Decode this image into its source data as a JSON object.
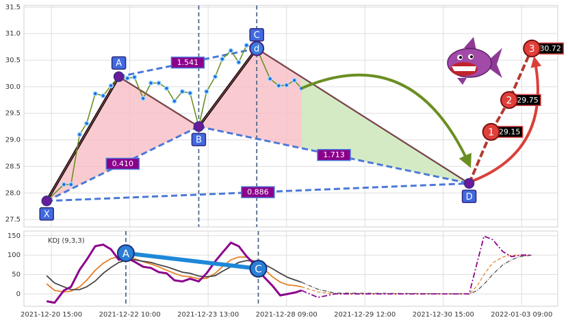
{
  "chart_data": [
    {
      "type": "line",
      "xlim": [
        -3.5,
        64.6
      ],
      "ylim": [
        27.36,
        31.53
      ],
      "yticks": [
        27.5,
        {
          "value": 28,
          "label": "28.0"
        },
        28.5,
        {
          "value": 29,
          "label": "29.0"
        },
        29.5,
        {
          "value": 30,
          "label": "30.0"
        },
        30.5,
        {
          "value": 31,
          "label": "31.0"
        },
        31.5
      ],
      "xticks": [
        {
          "value": 0,
          "label": "2021-12-20 15:00"
        },
        {
          "value": 10,
          "label": "2021-12-22 10:00"
        },
        {
          "value": 20,
          "label": "2021-12-23 13:00"
        },
        {
          "value": 30,
          "label": "2021-12-28 09:00"
        },
        {
          "value": 40,
          "label": "2021-12-29 12:00"
        },
        {
          "value": 50,
          "label": "2021-12-30 15:00"
        },
        {
          "value": 60,
          "label": "2022-01-03 09:00"
        }
      ],
      "grid": true,
      "x": [
        -0.6,
        1.6,
        2.5,
        3.6,
        4.5,
        5.6,
        6.6,
        7.6,
        8.6,
        9.7,
        10.6,
        11.7,
        12.7,
        13.7,
        14.7,
        15.7,
        16.7,
        17.7,
        18.8,
        19.8,
        20.9,
        21.8,
        22.9,
        23.9,
        24.9,
        26.2,
        27.9,
        29.0,
        30.0,
        31.0,
        31.9
      ],
      "series": [
        {
          "color": "#6b8e23",
          "marker_color": "#1e6fe0",
          "values": [
            27.85,
            28.16,
            28.16,
            29.1,
            29.31,
            29.87,
            29.83,
            30.02,
            30.19,
            30.16,
            30.18,
            29.78,
            30.07,
            30.07,
            29.97,
            29.73,
            29.91,
            29.88,
            29.25,
            29.91,
            30.19,
            30.52,
            30.68,
            30.46,
            30.78,
            30.72,
            30.15,
            30.02,
            30.03,
            30.12,
            29.97
          ]
        }
      ],
      "points": {
        "labels": [
          "X",
          "A",
          "B",
          "C",
          "D"
        ],
        "x": [
          -0.6,
          8.6,
          18.8,
          26.2,
          53.3
        ],
        "values": [
          27.85,
          30.19,
          29.25,
          30.72,
          28.18
        ]
      },
      "inner_label": "d",
      "leg_labels": [
        "0.410",
        "1.541",
        "0.886",
        "1.713"
      ],
      "targets": {
        "labels": [
          "1",
          "2",
          "3"
        ],
        "x": [
          56.1,
          58.4,
          61.3
        ],
        "values": [
          29.15,
          29.75,
          30.72
        ]
      }
    },
    {
      "type": "line",
      "title": "KDJ (9,3,3)",
      "xlim": [
        -3.5,
        64.6
      ],
      "ylim": [
        -32,
        162
      ],
      "yticks": [
        0,
        50,
        100,
        150
      ],
      "grid": true,
      "x": [
        -0.6,
        0.4,
        1.6,
        2.5,
        3.6,
        4.5,
        5.6,
        6.6,
        7.6,
        8.6,
        9.7,
        10.6,
        11.7,
        12.7,
        13.7,
        14.7,
        15.7,
        16.7,
        17.7,
        18.8,
        19.8,
        20.9,
        21.8,
        22.9,
        23.9,
        24.9,
        26.2,
        27.1,
        28.2,
        29.2,
        30.2,
        31.2,
        31.9
      ],
      "series": [
        {
          "color": "#e67e22",
          "values": [
            26,
            9,
            5,
            7,
            18,
            35,
            61,
            79,
            91,
            96,
            100,
            91,
            83,
            77,
            70,
            61,
            53,
            46,
            44,
            39,
            40,
            53,
            70,
            88,
            95,
            95,
            79,
            65,
            44,
            30,
            23,
            21,
            18
          ]
        },
        {
          "color": "#444444",
          "values": [
            47,
            28,
            18,
            11,
            11,
            18,
            33,
            53,
            68,
            81,
            88,
            88,
            84,
            81,
            75,
            70,
            63,
            56,
            53,
            46,
            44,
            47,
            58,
            70,
            81,
            86,
            84,
            77,
            65,
            53,
            42,
            35,
            30
          ]
        },
        {
          "color": "#8b008b",
          "values": [
            -19,
            -23,
            9,
            18,
            62,
            88,
            123,
            127,
            115,
            88,
            92,
            83,
            70,
            67,
            56,
            53,
            35,
            32,
            39,
            32,
            53,
            84,
            106,
            132,
            123,
            97,
            70,
            44,
            21,
            -4,
            0,
            4,
            9
          ]
        }
      ],
      "projection": {
        "x": [
          31.9,
          34.0,
          36.2,
          53.3,
          54.3,
          55.2,
          56.3,
          57.6,
          58.7,
          59.8,
          61.3
        ],
        "series": [
          {
            "color": "#e67e22",
            "values": [
              18,
              5,
              0,
              0,
              20,
              50,
              80,
              95,
              100,
              100,
              100
            ]
          },
          {
            "color": "#444444",
            "values": [
              30,
              12,
              2,
              0,
              8,
              25,
              50,
              75,
              88,
              96,
              100
            ]
          },
          {
            "color": "#8b008b",
            "values": [
              9,
              -9,
              0,
              0,
              79,
              149,
              140,
              109,
              96,
              100,
              100
            ]
          }
        ]
      },
      "points": {
        "labels": [
          "A",
          "C"
        ],
        "x": [
          9.5,
          26.4
        ],
        "values": [
          105,
          65
        ]
      }
    }
  ]
}
